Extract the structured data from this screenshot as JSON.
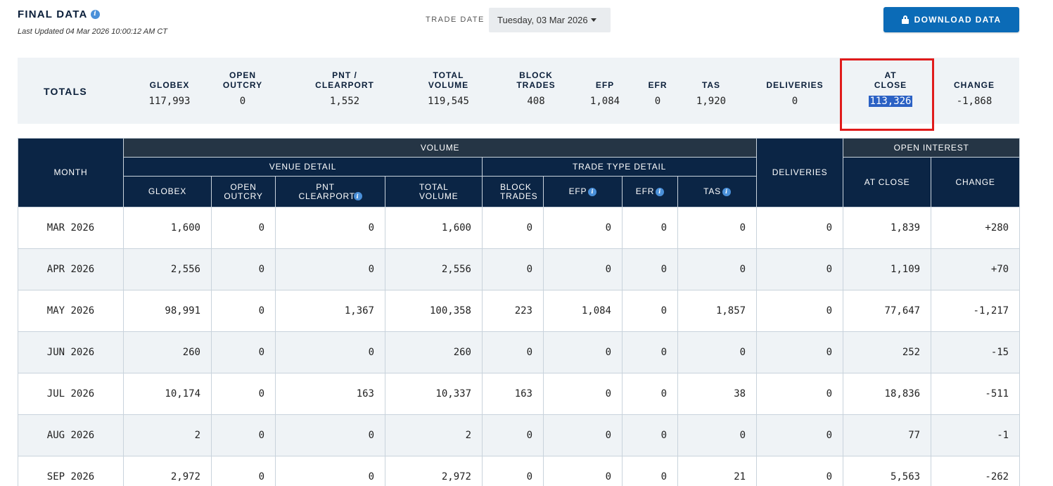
{
  "header": {
    "title": "FINAL DATA",
    "last_updated": "Last Updated 04 Mar 2026 10:00:12 AM CT",
    "info_icon": "i"
  },
  "trade_date": {
    "label": "TRADE DATE",
    "value": "Tuesday, 03 Mar 2026"
  },
  "download": {
    "label": "DOWNLOAD DATA",
    "icon": "lock-icon"
  },
  "totals": {
    "label": "TOTALS",
    "columns": [
      {
        "label": "GLOBEX",
        "value": "117,993"
      },
      {
        "label": "OPEN OUTCRY",
        "value": "0"
      },
      {
        "label": "PNT / CLEARPORT",
        "value": "1,552"
      },
      {
        "label": "TOTAL VOLUME",
        "value": "119,545"
      },
      {
        "label": "BLOCK TRADES",
        "value": "408"
      },
      {
        "label": "EFP",
        "value": "1,084"
      },
      {
        "label": "EFR",
        "value": "0"
      },
      {
        "label": "TAS",
        "value": "1,920"
      },
      {
        "label": "DELIVERIES",
        "value": "0"
      },
      {
        "label": "AT CLOSE",
        "value": "113,326"
      },
      {
        "label": "CHANGE",
        "value": "-1,868"
      }
    ]
  },
  "table": {
    "groups": {
      "month": "MONTH",
      "volume": "VOLUME",
      "venue_detail": "VENUE DETAIL",
      "trade_type_detail": "TRADE TYPE DETAIL",
      "deliveries": "DELIVERIES",
      "open_interest": "OPEN INTEREST"
    },
    "columns": {
      "globex": "GLOBEX",
      "open_outcry": "OPEN OUTCRY",
      "pnt_clearport": "PNT CLEARPORT",
      "total_volume": "TOTAL VOLUME",
      "block_trades": "BLOCK TRADES",
      "efp": "EFP",
      "efr": "EFR",
      "tas": "TAS",
      "at_close": "AT CLOSE",
      "change": "CHANGE"
    },
    "info_icon": "i",
    "rows": [
      {
        "month": "MAR 2026",
        "globex": "1,600",
        "open_outcry": "0",
        "pnt": "0",
        "total": "1,600",
        "block": "0",
        "efp": "0",
        "efr": "0",
        "tas": "0",
        "deliveries": "0",
        "at_close": "1,839",
        "change": "+280",
        "dir": "pos"
      },
      {
        "month": "APR 2026",
        "globex": "2,556",
        "open_outcry": "0",
        "pnt": "0",
        "total": "2,556",
        "block": "0",
        "efp": "0",
        "efr": "0",
        "tas": "0",
        "deliveries": "0",
        "at_close": "1,109",
        "change": "+70",
        "dir": "pos"
      },
      {
        "month": "MAY 2026",
        "globex": "98,991",
        "open_outcry": "0",
        "pnt": "1,367",
        "total": "100,358",
        "block": "223",
        "efp": "1,084",
        "efr": "0",
        "tas": "1,857",
        "deliveries": "0",
        "at_close": "77,647",
        "change": "-1,217",
        "dir": "neg"
      },
      {
        "month": "JUN 2026",
        "globex": "260",
        "open_outcry": "0",
        "pnt": "0",
        "total": "260",
        "block": "0",
        "efp": "0",
        "efr": "0",
        "tas": "0",
        "deliveries": "0",
        "at_close": "252",
        "change": "-15",
        "dir": "neg"
      },
      {
        "month": "JUL 2026",
        "globex": "10,174",
        "open_outcry": "0",
        "pnt": "163",
        "total": "10,337",
        "block": "163",
        "efp": "0",
        "efr": "0",
        "tas": "38",
        "deliveries": "0",
        "at_close": "18,836",
        "change": "-511",
        "dir": "neg"
      },
      {
        "month": "AUG 2026",
        "globex": "2",
        "open_outcry": "0",
        "pnt": "0",
        "total": "2",
        "block": "0",
        "efp": "0",
        "efr": "0",
        "tas": "0",
        "deliveries": "0",
        "at_close": "77",
        "change": "-1",
        "dir": "neg"
      },
      {
        "month": "SEP 2026",
        "globex": "2,972",
        "open_outcry": "0",
        "pnt": "0",
        "total": "2,972",
        "block": "0",
        "efp": "0",
        "efr": "0",
        "tas": "21",
        "deliveries": "0",
        "at_close": "5,563",
        "change": "-262",
        "dir": "neg"
      }
    ]
  }
}
